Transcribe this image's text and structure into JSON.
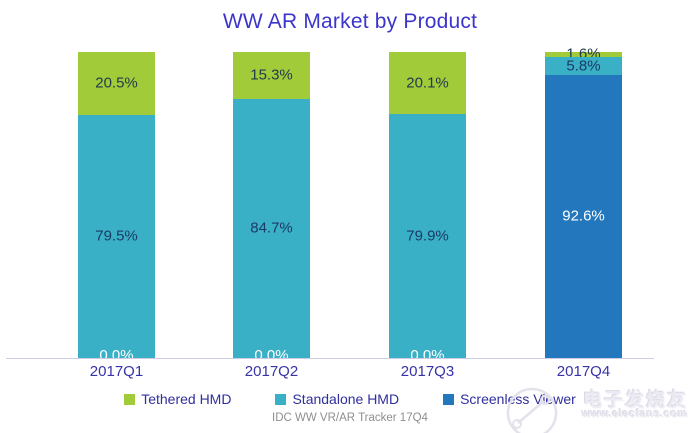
{
  "title": "WW AR Market by Product",
  "source": "IDC WW VR/AR Tracker 17Q4",
  "watermark": {
    "name": "电子发烧友",
    "url": "www.elecfans.com"
  },
  "colors": {
    "tethered": "#a2cb39",
    "standalone": "#3ab0c7",
    "screenless": "#2277bd",
    "title_text": "#3c35cb",
    "axis_label_text": "#3733a8",
    "legend_text": "#2f2f9d",
    "axis_line": "#cfcce8",
    "source_text": "#8f8f8f"
  },
  "legend": [
    {
      "label": "Tethered HMD",
      "color": "#a2cb39"
    },
    {
      "label": "Standalone HMD",
      "color": "#3ab0c7"
    },
    {
      "label": "Screenless Viewer",
      "color": "#2277bd"
    }
  ],
  "chart_data": {
    "type": "bar",
    "stacked": true,
    "percent_stacked": true,
    "title": "WW AR Market by Product",
    "categories": [
      "2017Q1",
      "2017Q2",
      "2017Q3",
      "2017Q4"
    ],
    "series": [
      {
        "name": "Tethered HMD",
        "color": "#a2cb39",
        "label_color": "#223a4e",
        "values": [
          20.5,
          15.3,
          20.1,
          1.6
        ],
        "labels": [
          "20.5%",
          "15.3%",
          "20.1%",
          "1.6%"
        ]
      },
      {
        "name": "Standalone HMD",
        "color": "#3ab0c7",
        "label_color": "#1b3b66",
        "values": [
          79.5,
          84.7,
          79.9,
          5.8
        ],
        "labels": [
          "79.5%",
          "84.7%",
          "79.9%",
          "5.8%"
        ]
      },
      {
        "name": "Screenless Viewer",
        "color": "#2277bd",
        "label_color": "#ffffff",
        "values": [
          0.0,
          0.0,
          0.0,
          92.6
        ],
        "labels": [
          "0.0%",
          "0.0%",
          "0.0%",
          "92.6%"
        ]
      }
    ],
    "ylim": [
      0,
      100
    ],
    "unit": "%",
    "grid": false,
    "legend_position": "bottom",
    "note": "stacking top-to-bottom: Tethered HMD, Standalone HMD, Screenless Viewer"
  }
}
